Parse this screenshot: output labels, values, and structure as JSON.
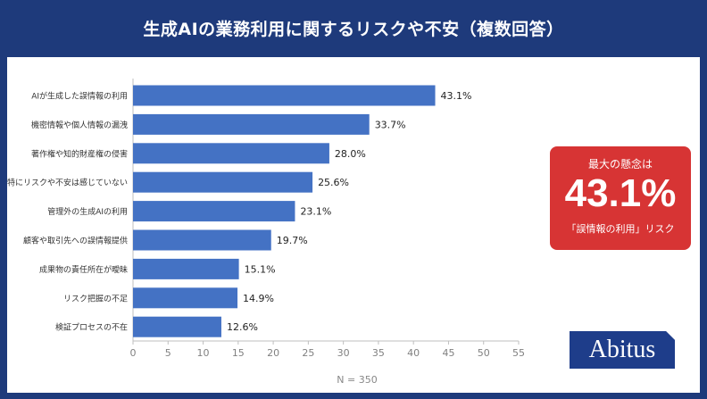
{
  "header": {
    "title": "生成AIの業務利用に関するリスクや不安（複数回答）"
  },
  "chart_data": {
    "type": "bar",
    "orientation": "horizontal",
    "categories": [
      "AIが生成した誤情報の利用",
      "機密情報や個人情報の漏洩",
      "著作権や知的財産権の侵害",
      "特にリスクや不安は感じていない",
      "管理外の生成AIの利用",
      "顧客や取引先への誤情報提供",
      "成果物の責任所在が曖昧",
      "リスク把握の不足",
      "検証プロセスの不在"
    ],
    "values": [
      43.1,
      33.7,
      28.0,
      25.6,
      23.1,
      19.7,
      15.1,
      14.9,
      12.6
    ],
    "value_labels": [
      "43.1%",
      "33.7%",
      "28.0%",
      "25.6%",
      "23.1%",
      "19.7%",
      "15.1%",
      "14.9%",
      "12.6%"
    ],
    "xlim": [
      0,
      55
    ],
    "xticks": [
      "0",
      "5",
      "10",
      "15",
      "20",
      "25",
      "30",
      "35",
      "40",
      "45",
      "50",
      "55"
    ],
    "grid": false,
    "bar_color": "#4472c4",
    "note": "N = 350"
  },
  "callout": {
    "label": "最大の懸念は",
    "value": "43.1%",
    "caption": "「誤情報の利用」リスク",
    "color": "#d73434"
  },
  "logo": {
    "text": "Abitus",
    "color": "#1e3d8a"
  },
  "colors": {
    "background": "#1e3a7b",
    "panel": "#ffffff"
  }
}
